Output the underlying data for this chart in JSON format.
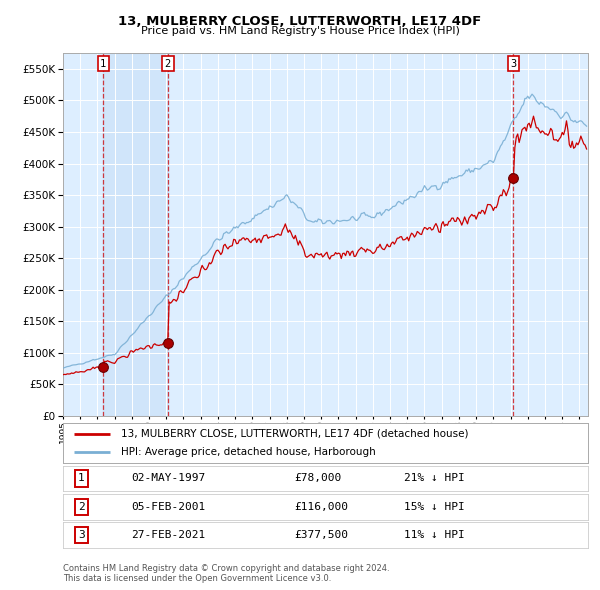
{
  "title": "13, MULBERRY CLOSE, LUTTERWORTH, LE17 4DF",
  "subtitle": "Price paid vs. HM Land Registry's House Price Index (HPI)",
  "ylim": [
    0,
    575000
  ],
  "yticks": [
    0,
    50000,
    100000,
    150000,
    200000,
    250000,
    300000,
    350000,
    400000,
    450000,
    500000,
    550000
  ],
  "hpi_color": "#7aafd4",
  "price_color": "#cc0000",
  "bg_color": "#ddeeff",
  "grid_color": "#ffffff",
  "purchase_dates": [
    1997.34,
    2001.09,
    2021.16
  ],
  "purchase_prices": [
    78000,
    116000,
    377500
  ],
  "purchase_labels": [
    "1",
    "2",
    "3"
  ],
  "legend_price_label": "13, MULBERRY CLOSE, LUTTERWORTH, LE17 4DF (detached house)",
  "legend_hpi_label": "HPI: Average price, detached house, Harborough",
  "table_rows": [
    {
      "num": "1",
      "date": "02-MAY-1997",
      "price": "£78,000",
      "hpi": "21% ↓ HPI"
    },
    {
      "num": "2",
      "date": "05-FEB-2001",
      "price": "£116,000",
      "hpi": "15% ↓ HPI"
    },
    {
      "num": "3",
      "date": "27-FEB-2021",
      "price": "£377,500",
      "hpi": "11% ↓ HPI"
    }
  ],
  "footnote": "Contains HM Land Registry data © Crown copyright and database right 2024.\nThis data is licensed under the Open Government Licence v3.0.",
  "xmin": 1995.0,
  "xmax": 2025.5
}
